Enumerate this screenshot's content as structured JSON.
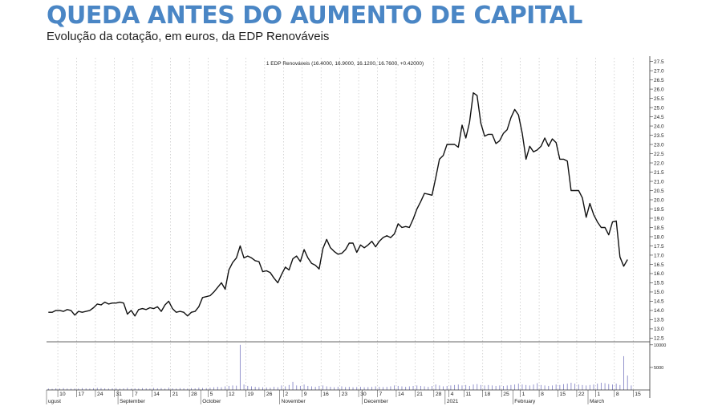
{
  "header": {
    "title": "QUEDA ANTES DO AUMENTO DE CAPITAL",
    "subtitle": "Evolução da cotação, em euros, da EDP Renováveis"
  },
  "colors": {
    "title": "#4a86c5",
    "price_line": "#111111",
    "volume_bars": "#8a8ac8",
    "grid": "#bbbbbb"
  },
  "chart_data": {
    "type": "line",
    "title": "1 EDP Renováveis (16.4000, 16.9000, 16.1200, 16.7600, +0.42000)",
    "grid": true,
    "price_axis": {
      "ylim": [
        12.3,
        27.7
      ],
      "ticks": [
        "12.5",
        "13.0",
        "13.5",
        "14.0",
        "14.5",
        "15.0",
        "15.5",
        "16.0",
        "16.5",
        "17.0",
        "17.5",
        "18.0",
        "18.5",
        "19.0",
        "19.5",
        "20.0",
        "20.5",
        "21.0",
        "21.5",
        "22.0",
        "22.5",
        "23.0",
        "23.5",
        "24.0",
        "24.5",
        "25.0",
        "25.5",
        "26.0",
        "26.5",
        "27.0",
        "27.5"
      ]
    },
    "volume_axis": {
      "ylim": [
        0,
        10500
      ],
      "ticks": [
        "5000",
        "10000"
      ]
    },
    "x_axis": {
      "day_ticks": [
        {
          "i": 3,
          "label": "10"
        },
        {
          "i": 8,
          "label": "17"
        },
        {
          "i": 13,
          "label": "24"
        },
        {
          "i": 18,
          "label": "31"
        },
        {
          "i": 23,
          "label": "7"
        },
        {
          "i": 28,
          "label": "14"
        },
        {
          "i": 33,
          "label": "21"
        },
        {
          "i": 38,
          "label": "28"
        },
        {
          "i": 43,
          "label": "5"
        },
        {
          "i": 48,
          "label": "12"
        },
        {
          "i": 53,
          "label": "19"
        },
        {
          "i": 58,
          "label": "26"
        },
        {
          "i": 63,
          "label": "2"
        },
        {
          "i": 68,
          "label": "9"
        },
        {
          "i": 73,
          "label": "16"
        },
        {
          "i": 78,
          "label": "23"
        },
        {
          "i": 83,
          "label": "30"
        },
        {
          "i": 88,
          "label": "7"
        },
        {
          "i": 93,
          "label": "14"
        },
        {
          "i": 98,
          "label": "21"
        },
        {
          "i": 103,
          "label": "28"
        },
        {
          "i": 107,
          "label": "4"
        },
        {
          "i": 111,
          "label": "11"
        },
        {
          "i": 116,
          "label": "18"
        },
        {
          "i": 121,
          "label": "25"
        },
        {
          "i": 126,
          "label": "1"
        },
        {
          "i": 131,
          "label": "8"
        },
        {
          "i": 136,
          "label": "15"
        },
        {
          "i": 141,
          "label": "22"
        },
        {
          "i": 146,
          "label": "1"
        },
        {
          "i": 151,
          "label": "8"
        },
        {
          "i": 156,
          "label": "15"
        }
      ],
      "period_labels": [
        {
          "i": 0,
          "label": "ugust"
        },
        {
          "i": 19,
          "label": "September"
        },
        {
          "i": 41,
          "label": "October"
        },
        {
          "i": 62,
          "label": "November"
        },
        {
          "i": 84,
          "label": "December"
        },
        {
          "i": 106,
          "label": "2021"
        },
        {
          "i": 124,
          "label": "February"
        },
        {
          "i": 144,
          "label": "March"
        }
      ]
    },
    "series": [
      {
        "type": "line",
        "values": [
          13.9,
          13.9,
          14.0,
          14.0,
          13.95,
          14.05,
          14.0,
          13.75,
          13.95,
          13.9,
          13.95,
          14.0,
          14.15,
          14.35,
          14.3,
          14.45,
          14.35,
          14.4,
          14.4,
          14.45,
          14.4,
          13.8,
          14.0,
          13.7,
          14.05,
          14.1,
          14.05,
          14.15,
          14.1,
          14.2,
          13.95,
          14.3,
          14.5,
          14.1,
          13.9,
          13.95,
          13.9,
          13.7,
          13.9,
          13.95,
          14.2,
          14.7,
          14.75,
          14.8,
          15.0,
          15.25,
          15.5,
          15.15,
          16.2,
          16.6,
          16.85,
          17.5,
          16.85,
          16.95,
          16.85,
          16.7,
          16.65,
          16.1,
          16.15,
          16.05,
          15.75,
          15.5,
          15.95,
          16.35,
          16.2,
          16.8,
          16.95,
          16.65,
          17.3,
          16.85,
          16.55,
          16.45,
          16.25,
          17.35,
          17.85,
          17.4,
          17.2,
          17.05,
          17.1,
          17.3,
          17.65,
          17.65,
          17.15,
          17.55,
          17.4,
          17.55,
          17.75,
          17.45,
          17.75,
          17.95,
          18.05,
          17.95,
          18.15,
          18.7,
          18.5,
          18.55,
          18.5,
          18.95,
          19.5,
          19.9,
          20.35,
          20.3,
          20.25,
          21.2,
          22.2,
          22.4,
          23.0,
          23.0,
          23.0,
          22.85,
          24.05,
          23.35,
          24.2,
          25.8,
          25.65,
          24.15,
          23.45,
          23.55,
          23.55,
          23.05,
          23.2,
          23.6,
          23.8,
          24.45,
          24.9,
          24.6,
          23.6,
          22.2,
          22.9,
          22.6,
          22.7,
          22.9,
          23.35,
          22.9,
          23.3,
          23.1,
          22.2,
          22.2,
          22.1,
          20.5,
          20.5,
          20.5,
          20.1,
          19.05,
          19.8,
          19.2,
          18.8,
          18.5,
          18.5,
          18.1,
          18.8,
          18.85,
          16.9,
          16.4,
          16.76
        ]
      },
      {
        "type": "bar",
        "values": [
          300,
          250,
          350,
          300,
          400,
          300,
          280,
          320,
          300,
          400,
          350,
          300,
          380,
          450,
          400,
          350,
          300,
          350,
          400,
          300,
          350,
          450,
          300,
          350,
          300,
          400,
          350,
          300,
          450,
          350,
          400,
          300,
          500,
          350,
          300,
          400,
          350,
          300,
          400,
          350,
          500,
          450,
          400,
          500,
          600,
          700,
          600,
          800,
          900,
          1000,
          950,
          10000,
          1200,
          900,
          800,
          700,
          600,
          600,
          550,
          500,
          700,
          600,
          1000,
          800,
          1100,
          1800,
          1000,
          900,
          1200,
          900,
          800,
          700,
          900,
          1000,
          800,
          700,
          600,
          700,
          800,
          650,
          700,
          600,
          650,
          700,
          600,
          650,
          700,
          800,
          700,
          650,
          700,
          800,
          1000,
          900,
          800,
          700,
          800,
          900,
          1000,
          900,
          800,
          700,
          900,
          1200,
          1000,
          800,
          900,
          1000,
          1100,
          1200,
          1000,
          1100,
          900,
          1200,
          1300,
          1100,
          1000,
          1100,
          1000,
          900,
          1000,
          900,
          1000,
          1100,
          1200,
          1400,
          1200,
          1100,
          1000,
          1200,
          1500,
          1100,
          1000,
          900,
          1000,
          1200,
          1100,
          1300,
          1400,
          1600,
          1400,
          1200,
          1100,
          1000,
          1100,
          1200,
          1400,
          1600,
          1500,
          1300,
          1200,
          1400,
          1100,
          7500,
          3200,
          1000
        ]
      }
    ]
  }
}
